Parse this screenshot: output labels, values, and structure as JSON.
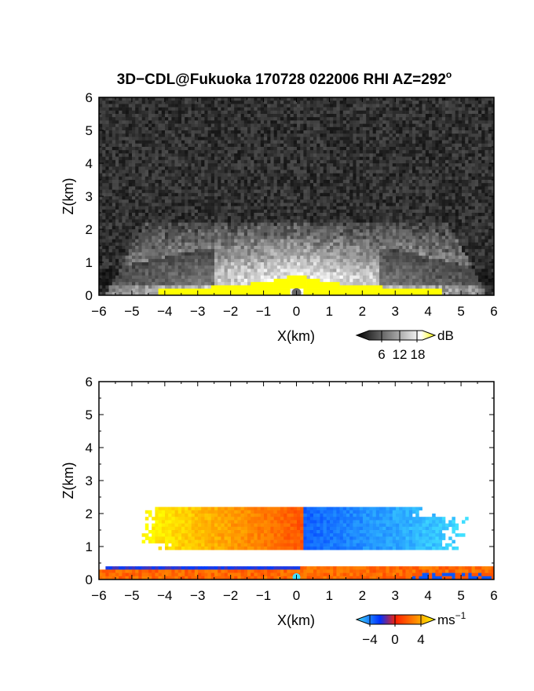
{
  "chart_data": [
    {
      "type": "heatmap",
      "title": "3D−CDL@Fukuoka 170728 022006 RHI AZ=292",
      "title_superscript": "o",
      "xlabel": "X(km)",
      "ylabel": "Z(km)",
      "xlim": [
        -6,
        6
      ],
      "ylim": [
        0,
        6
      ],
      "x_ticks": [
        "−6",
        "−5",
        "−4",
        "−3",
        "−2",
        "−1",
        "0",
        "1",
        "2",
        "3",
        "4",
        "5",
        "6"
      ],
      "y_ticks": [
        "0",
        "1",
        "2",
        "3",
        "4",
        "5",
        "6"
      ],
      "colorbar": {
        "unit": "dB",
        "ticks": [
          "6",
          "12",
          "18"
        ],
        "range": [
          0,
          20
        ],
        "colormap": "grayscale-to-yellow"
      }
    },
    {
      "type": "heatmap",
      "xlabel": "X(km)",
      "ylabel": "Z(km)",
      "xlim": [
        -6,
        6
      ],
      "ylim": [
        0,
        6
      ],
      "x_ticks": [
        "−6",
        "−5",
        "−4",
        "−3",
        "−2",
        "−1",
        "0",
        "1",
        "2",
        "3",
        "4",
        "5",
        "6"
      ],
      "y_ticks": [
        "0",
        "1",
        "2",
        "3",
        "4",
        "5",
        "6"
      ],
      "colorbar": {
        "unit": "ms",
        "unit_superscript": "−1",
        "ticks": [
          "−4",
          "0",
          "4"
        ],
        "range": [
          -6,
          6
        ],
        "colormap": "cyan-blue-red-yellow"
      }
    }
  ],
  "colors": {
    "yellow": "#ffff00",
    "red": "#ff2000",
    "blue": "#0030ff",
    "cyan": "#40e0ff",
    "orange": "#ff8800"
  }
}
